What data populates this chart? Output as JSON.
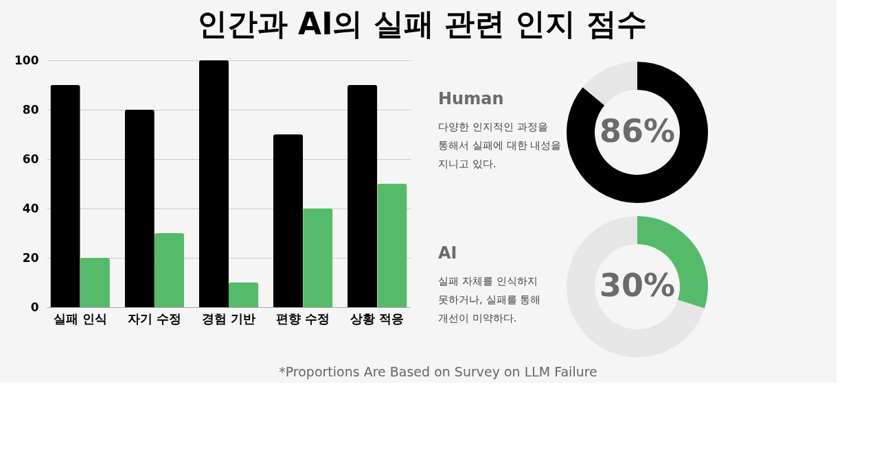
{
  "chart_data": [
    {
      "type": "bar",
      "title": "인간과 AI의 실패 관련 인지 점수",
      "categories": [
        "실패 인식",
        "자기 수정",
        "경험 기반",
        "편향 수정",
        "상황 적응"
      ],
      "series": [
        {
          "color": "#000000",
          "values": [
            90,
            80,
            100,
            70,
            90
          ]
        },
        {
          "color": "#55bb6a",
          "values": [
            20,
            30,
            10,
            40,
            50
          ]
        }
      ],
      "ylim": [
        0,
        100
      ],
      "yticks": [
        0,
        20,
        40,
        60,
        80,
        100
      ],
      "grid": "y",
      "legend": false,
      "annotations": [
        "*Proportions Are Based on Survey on LLM Failure"
      ]
    },
    {
      "type": "donut",
      "title": "Human",
      "subtitle": "다양한 인지적인 과정을 통해서 실패에 대한 내성을 지니고 있다.",
      "categories": [
        null,
        null
      ],
      "values": [
        86,
        14
      ],
      "colors": [
        "#000000",
        "#e6e6e6"
      ],
      "value_labels": [
        "86%",
        null
      ]
    },
    {
      "type": "donut",
      "title": "AI",
      "subtitle": "실패 자체를 인식하지 못하거나, 실패를 통해 개선이 미약하다.",
      "categories": [
        null,
        null
      ],
      "values": [
        30,
        70
      ],
      "colors": [
        "#55bb6a",
        "#e6e6e6"
      ],
      "value_labels": [
        "30%",
        null
      ]
    }
  ]
}
